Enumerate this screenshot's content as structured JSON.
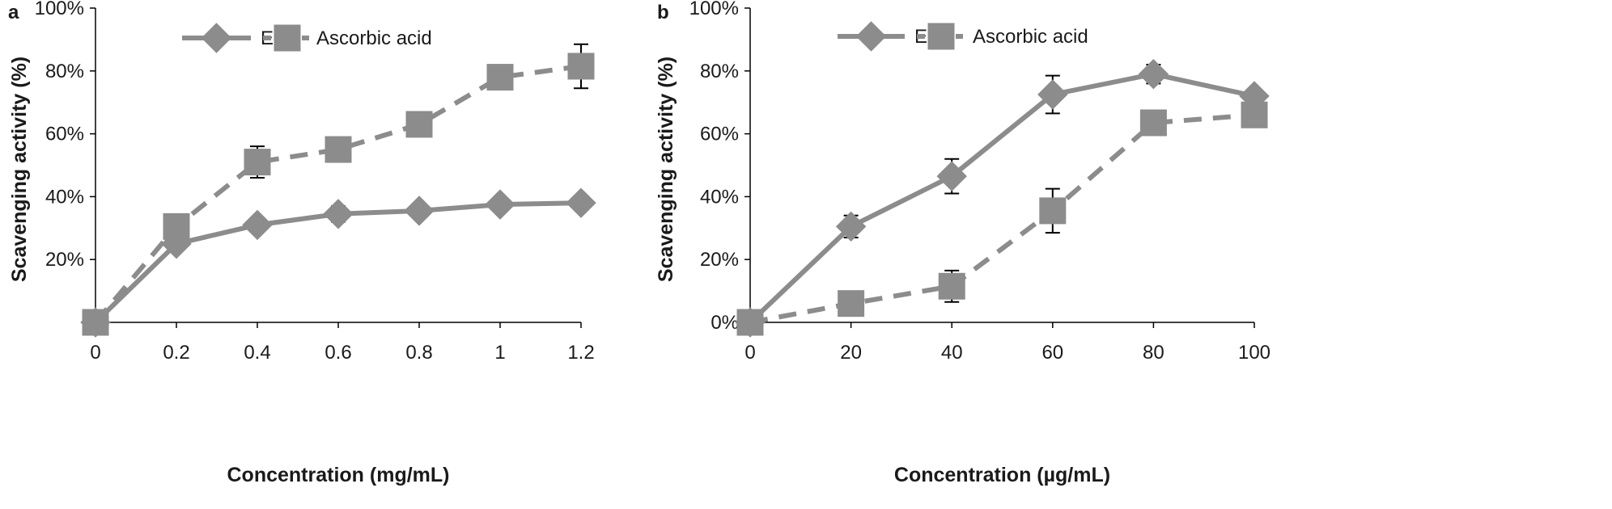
{
  "chart_data": [
    {
      "panel_label": "a",
      "type": "line",
      "xlabel": "Concentration (mg/mL)",
      "ylabel": "Scavenging activity (%)",
      "xlim": [
        0,
        1.2
      ],
      "ylim": [
        0,
        100
      ],
      "x_ticks": [
        "0",
        "0.2",
        "0.4",
        "0.6",
        "0.8",
        "1",
        "1.2"
      ],
      "y_ticks": [
        "20%",
        "40%",
        "60%",
        "80%",
        "100%"
      ],
      "legend_position": "top-center",
      "x": [
        0,
        0.2,
        0.4,
        0.6,
        0.8,
        1,
        1.2
      ],
      "series": [
        {
          "name": "EPS",
          "marker": "diamond",
          "line": "solid",
          "color": "#8c8c8c",
          "values": [
            0,
            25,
            31,
            34.5,
            35.5,
            37.5,
            38
          ],
          "errors": [
            0,
            0,
            0,
            2.5,
            0,
            0,
            0
          ]
        },
        {
          "name": "Ascorbic acid",
          "marker": "square",
          "line": "dashed",
          "color": "#8c8c8c",
          "values": [
            0,
            30.5,
            51,
            55,
            63,
            78,
            81.5
          ],
          "errors": [
            0,
            0,
            5,
            0,
            0,
            0,
            7
          ]
        }
      ]
    },
    {
      "panel_label": "b",
      "type": "line",
      "xlabel": "Concentration (µg/mL)",
      "ylabel": "Scavenging activity (%)",
      "xlim": [
        0,
        100
      ],
      "ylim": [
        0,
        100
      ],
      "x_ticks": [
        "0",
        "20",
        "40",
        "60",
        "80",
        "100"
      ],
      "y_ticks": [
        "0%",
        "20%",
        "40%",
        "60%",
        "80%",
        "100%"
      ],
      "legend_position": "top-center",
      "x": [
        0,
        20,
        40,
        60,
        80,
        100
      ],
      "series": [
        {
          "name": "EPS",
          "marker": "diamond",
          "line": "solid",
          "color": "#8c8c8c",
          "values": [
            0,
            30.5,
            46.5,
            72.5,
            79,
            72
          ],
          "errors": [
            0,
            3.5,
            5.5,
            6,
            3,
            0
          ]
        },
        {
          "name": "Ascorbic acid",
          "marker": "square",
          "line": "dashed",
          "color": "#8c8c8c",
          "values": [
            0,
            6,
            11.5,
            35.5,
            63.5,
            66
          ],
          "errors": [
            0,
            0,
            5,
            7,
            0,
            0
          ]
        }
      ]
    }
  ]
}
